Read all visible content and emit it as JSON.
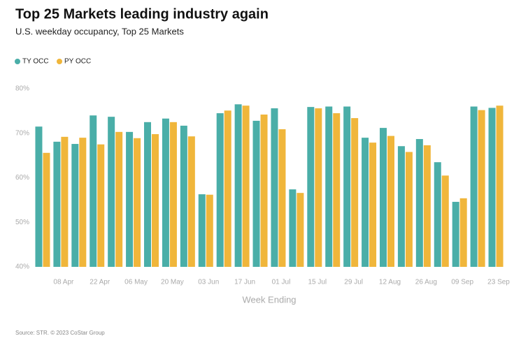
{
  "chart_data": {
    "type": "bar",
    "title": "Top 25 Markets leading industry again",
    "subtitle": "U.S. weekday occupancy, Top 25 Markets",
    "x_label": "Week Ending",
    "source": "Source: STR. © 2023 CoStar Group",
    "categories": [
      null,
      "08 Apr",
      null,
      "22 Apr",
      null,
      "06 May",
      null,
      "20 May",
      null,
      "03 Jun",
      null,
      "17 Jun",
      null,
      "01 Jul",
      null,
      "15 Jul",
      null,
      "29 Jul",
      null,
      "12 Aug",
      null,
      "26 Aug",
      null,
      "09 Sep",
      null,
      "23 Sep"
    ],
    "series": [
      {
        "name": "TY OCC",
        "color": "#4aaea8",
        "values": [
          71.5,
          68.1,
          67.6,
          74.0,
          73.7,
          70.3,
          72.5,
          73.3,
          71.7,
          56.3,
          74.5,
          76.5,
          72.8,
          75.6,
          57.4,
          75.9,
          76.0,
          76.0,
          69.0,
          71.2,
          67.1,
          68.7,
          63.5,
          54.6,
          76.0,
          75.7
        ]
      },
      {
        "name": "PY OCC",
        "color": "#f0b63b",
        "values": [
          65.6,
          69.2,
          69.0,
          67.5,
          70.3,
          68.9,
          69.8,
          72.5,
          69.3,
          56.2,
          75.1,
          76.2,
          74.2,
          70.9,
          56.6,
          75.6,
          74.5,
          73.4,
          67.9,
          69.4,
          65.8,
          67.3,
          60.5,
          55.4,
          75.2,
          76.2
        ]
      }
    ],
    "ylim": [
      40,
      80
    ],
    "yticks": [
      {
        "value": 40,
        "label": "40%"
      },
      {
        "value": 50,
        "label": "50%"
      },
      {
        "value": 60,
        "label": "60%"
      },
      {
        "value": 70,
        "label": "70%"
      },
      {
        "value": 80,
        "label": "80%"
      }
    ],
    "grid": false,
    "legend": "top-left"
  }
}
